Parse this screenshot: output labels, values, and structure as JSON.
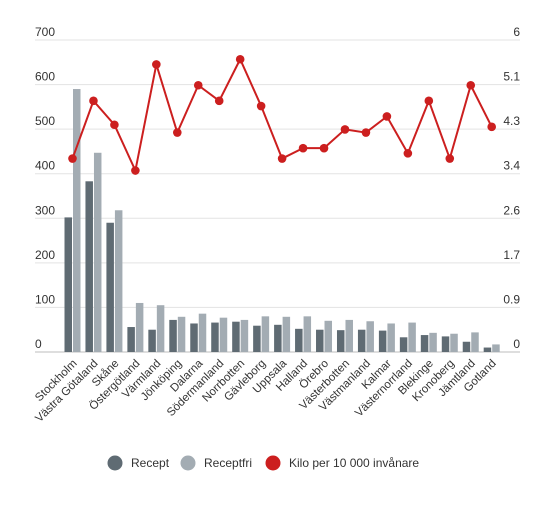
{
  "chart_data": {
    "type": "bar",
    "title": "",
    "xlabel": "",
    "ylabel": "",
    "ylim": [
      0,
      700
    ],
    "y2lim": [
      0,
      6
    ],
    "y_ticks": [
      "0",
      "100",
      "200",
      "300",
      "400",
      "500",
      "600",
      "700"
    ],
    "y2_ticks": [
      "0",
      "0.9",
      "1.7",
      "2.6",
      "3.4",
      "4.3",
      "5.1",
      "6"
    ],
    "grid": true,
    "legend_position": "bottom",
    "categories": [
      "Stockholm",
      "Västra Götaland",
      "Skåne",
      "Östergötland",
      "Värmland",
      "Jönköping",
      "Dalarna",
      "Södermanland",
      "Norrbotten",
      "Gävleborg",
      "Uppsala",
      "Halland",
      "Örebro",
      "Västerbotten",
      "Västmanland",
      "Kalmar",
      "Västernorrland",
      "Blekinge",
      "Kronoberg",
      "Jämtland",
      "Gotland"
    ],
    "series": [
      {
        "name": "Recept",
        "type": "bar",
        "axis": "left",
        "color": "#5f6b73",
        "values": [
          302,
          383,
          290,
          56,
          50,
          72,
          64,
          66,
          68,
          59,
          61,
          52,
          50,
          49,
          50,
          48,
          33,
          38,
          35,
          23,
          10
        ]
      },
      {
        "name": "Receptfri",
        "type": "bar",
        "axis": "left",
        "color": "#a3acb3",
        "values": [
          590,
          447,
          318,
          110,
          105,
          79,
          86,
          77,
          72,
          80,
          79,
          80,
          70,
          72,
          69,
          64,
          66,
          43,
          41,
          44,
          17
        ]
      },
      {
        "name": "Kilo per 10 000 invånare",
        "type": "line",
        "axis": "right",
        "color": "#cc1f1f",
        "values": [
          3.72,
          4.83,
          4.37,
          3.49,
          5.53,
          4.22,
          5.13,
          4.83,
          5.63,
          4.73,
          3.72,
          3.92,
          3.92,
          4.28,
          4.22,
          4.53,
          3.82,
          4.83,
          3.72,
          5.13,
          4.33
        ]
      }
    ]
  }
}
